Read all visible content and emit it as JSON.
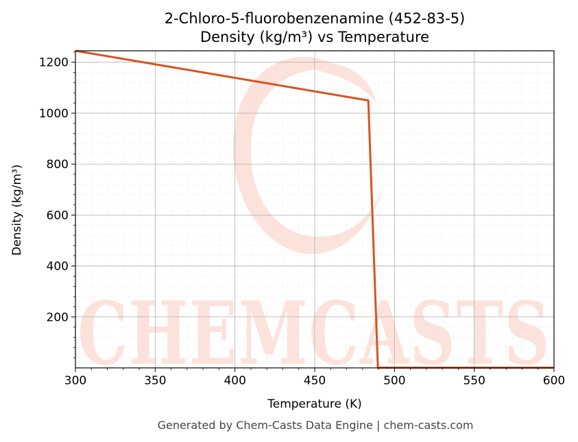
{
  "chart_data": {
    "type": "line",
    "title": "2-Chloro-5-fluorobenzenamine (452-83-5)",
    "subtitle": "Density (kg/m³) vs Temperature",
    "xlabel": "Temperature (K)",
    "ylabel": "Density (kg/m³)",
    "xlim": [
      300,
      600
    ],
    "ylim": [
      0,
      1245
    ],
    "xticks": [
      300,
      350,
      400,
      450,
      500,
      550,
      600
    ],
    "yticks": [
      200,
      400,
      600,
      800,
      1000,
      1200
    ],
    "grid": true,
    "series": [
      {
        "color": "#d9531e",
        "x": [
          300,
          483.6,
          489.6,
          600
        ],
        "y": [
          1245,
          1050,
          0.5,
          0.5
        ]
      }
    ]
  },
  "watermark": {
    "text": "CHEMCASTS",
    "color": "#fde2dc"
  },
  "footer": "Generated by Chem-Casts Data Engine | chem-casts.com"
}
